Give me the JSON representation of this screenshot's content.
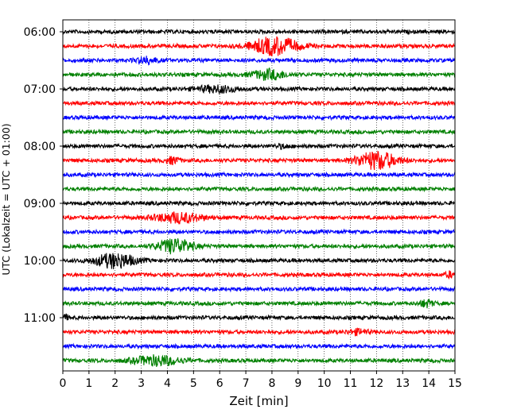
{
  "chart_data": {
    "type": "line",
    "title": "",
    "xlabel": "Zeit  [min]",
    "ylabel": "UTC (Lokalzeit = UTC + 01:00)",
    "xlim": [
      0,
      15
    ],
    "x_ticks": [
      0,
      1,
      2,
      3,
      4,
      5,
      6,
      7,
      8,
      9,
      10,
      11,
      12,
      13,
      14,
      15
    ],
    "y_tick_labels": [
      "06:00",
      "07:00",
      "08:00",
      "09:00",
      "10:00",
      "11:00"
    ],
    "grid": "vertical dotted",
    "trace_colors": [
      "#000000",
      "#ff0000",
      "#0000ff",
      "#008000"
    ],
    "trace_interval_minutes": 15,
    "traces": [
      {
        "start": "06:00",
        "color": "#000000",
        "events": []
      },
      {
        "start": "06:15",
        "color": "#ff0000",
        "events": [
          {
            "t": 8.1,
            "amp": 11,
            "dur": 1.4
          }
        ]
      },
      {
        "start": "06:30",
        "color": "#0000ff",
        "events": [
          {
            "t": 3.2,
            "amp": 4,
            "dur": 0.6
          }
        ]
      },
      {
        "start": "06:45",
        "color": "#008000",
        "events": [
          {
            "t": 7.9,
            "amp": 6,
            "dur": 1.0
          }
        ]
      },
      {
        "start": "07:00",
        "color": "#000000",
        "events": [
          {
            "t": 5.9,
            "amp": 4,
            "dur": 1.2
          }
        ]
      },
      {
        "start": "07:15",
        "color": "#ff0000",
        "events": []
      },
      {
        "start": "07:30",
        "color": "#0000ff",
        "events": []
      },
      {
        "start": "07:45",
        "color": "#008000",
        "events": []
      },
      {
        "start": "08:00",
        "color": "#000000",
        "events": [
          {
            "t": 8.4,
            "amp": 2,
            "dur": 0.4
          }
        ]
      },
      {
        "start": "08:15",
        "color": "#ff0000",
        "events": [
          {
            "t": 4.2,
            "amp": 4,
            "dur": 0.4
          },
          {
            "t": 12.0,
            "amp": 11,
            "dur": 1.2
          }
        ]
      },
      {
        "start": "08:30",
        "color": "#0000ff",
        "events": []
      },
      {
        "start": "08:45",
        "color": "#008000",
        "events": []
      },
      {
        "start": "09:00",
        "color": "#000000",
        "events": []
      },
      {
        "start": "09:15",
        "color": "#ff0000",
        "events": [
          {
            "t": 4.4,
            "amp": 6,
            "dur": 1.4
          }
        ]
      },
      {
        "start": "09:30",
        "color": "#0000ff",
        "events": []
      },
      {
        "start": "09:45",
        "color": "#008000",
        "events": [
          {
            "t": 4.3,
            "amp": 9,
            "dur": 1.0
          }
        ]
      },
      {
        "start": "10:00",
        "color": "#000000",
        "events": [
          {
            "t": 2.0,
            "amp": 9,
            "dur": 1.2
          }
        ]
      },
      {
        "start": "10:15",
        "color": "#ff0000",
        "events": [
          {
            "t": 14.8,
            "amp": 3,
            "dur": 0.3
          }
        ]
      },
      {
        "start": "10:30",
        "color": "#0000ff",
        "events": []
      },
      {
        "start": "10:45",
        "color": "#008000",
        "events": [
          {
            "t": 13.9,
            "amp": 4,
            "dur": 0.4
          }
        ]
      },
      {
        "start": "11:00",
        "color": "#000000",
        "events": [
          {
            "t": 0.1,
            "amp": 3,
            "dur": 0.2
          }
        ]
      },
      {
        "start": "11:15",
        "color": "#ff0000",
        "events": [
          {
            "t": 11.3,
            "amp": 3,
            "dur": 0.6
          }
        ]
      },
      {
        "start": "11:30",
        "color": "#0000ff",
        "events": []
      },
      {
        "start": "11:45",
        "color": "#008000",
        "events": [
          {
            "t": 3.6,
            "amp": 6,
            "dur": 1.4
          }
        ]
      }
    ]
  }
}
